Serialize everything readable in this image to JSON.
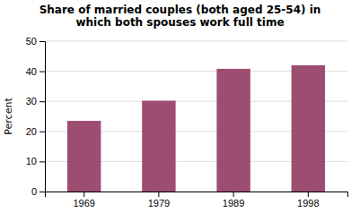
{
  "chart_data": {
    "type": "bar",
    "title": "Share of married couples (both aged 25-54) in\nwhich both spouses work full time",
    "ylabel": "Percent",
    "categories": [
      "1969",
      "1979",
      "1989",
      "1998"
    ],
    "values": [
      23.5,
      30.2,
      40.8,
      42.0
    ],
    "color": "#9e4d72",
    "ylim": [
      0,
      50
    ],
    "yticks": [
      0,
      10,
      20,
      30,
      40,
      50
    ],
    "grid": true
  }
}
